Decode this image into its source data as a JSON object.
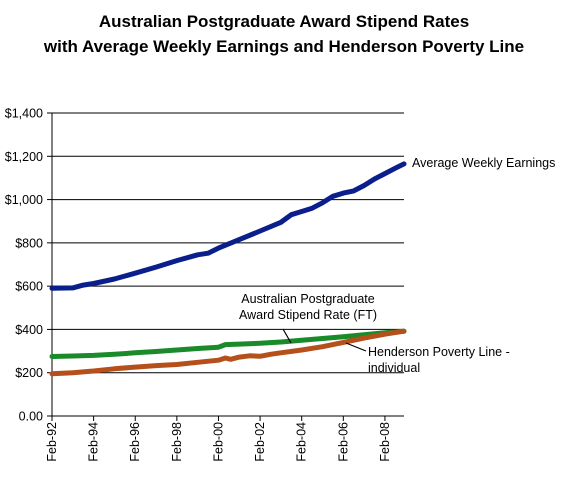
{
  "chart_data": {
    "type": "line",
    "title_lines": [
      "Australian Postgraduate Award Stipend Rates",
      "with Average Weekly Earnings and Henderson Poverty Line"
    ],
    "xlabel": "",
    "ylabel": "",
    "ylim": [
      0,
      1400
    ],
    "xlim": [
      "1992-02",
      "2009-01"
    ],
    "y_ticks": [
      0,
      200,
      400,
      600,
      800,
      1000,
      1200,
      1400
    ],
    "y_tick_labels": [
      "0.00",
      "$200",
      "$400",
      "$600",
      "$800",
      "$1,000",
      "$1,200",
      "$1,400"
    ],
    "x_ticks": [
      "1992-02",
      "1994-02",
      "1996-02",
      "1998-02",
      "2000-02",
      "2002-02",
      "2004-02",
      "2006-02",
      "2008-02"
    ],
    "x_tick_labels": [
      "Feb-92",
      "Feb-94",
      "Feb-96",
      "Feb-98",
      "Feb-00",
      "Feb-02",
      "Feb-04",
      "Feb-06",
      "Feb-08"
    ],
    "grid": "horizontal",
    "series": [
      {
        "name": "Average Weekly Earnings",
        "color": "#0A1E8C",
        "points": [
          [
            "1992-02",
            590
          ],
          [
            "1993-02",
            592
          ],
          [
            "1993-08",
            605
          ],
          [
            "1994-02",
            612
          ],
          [
            "1995-02",
            633
          ],
          [
            "1996-02",
            660
          ],
          [
            "1997-02",
            688
          ],
          [
            "1998-02",
            718
          ],
          [
            "1999-02",
            745
          ],
          [
            "1999-08",
            752
          ],
          [
            "2000-02",
            776
          ],
          [
            "2001-02",
            815
          ],
          [
            "2002-02",
            855
          ],
          [
            "2003-02",
            895
          ],
          [
            "2003-08",
            930
          ],
          [
            "2004-02",
            945
          ],
          [
            "2004-08",
            960
          ],
          [
            "2005-02",
            985
          ],
          [
            "2005-08",
            1015
          ],
          [
            "2006-02",
            1030
          ],
          [
            "2006-08",
            1040
          ],
          [
            "2007-02",
            1065
          ],
          [
            "2007-08",
            1095
          ],
          [
            "2008-02",
            1120
          ],
          [
            "2008-08",
            1145
          ],
          [
            "2009-01",
            1165
          ]
        ]
      },
      {
        "name": "Australian Postgraduate Award Stipend Rate (FT)",
        "color": "#1A8A2A",
        "points": [
          [
            "1992-02",
            275
          ],
          [
            "1993-02",
            277
          ],
          [
            "1994-02",
            280
          ],
          [
            "1995-02",
            285
          ],
          [
            "1996-02",
            292
          ],
          [
            "1997-02",
            298
          ],
          [
            "1998-02",
            305
          ],
          [
            "1999-02",
            312
          ],
          [
            "2000-02",
            318
          ],
          [
            "2000-06",
            330
          ],
          [
            "2001-02",
            332
          ],
          [
            "2002-02",
            336
          ],
          [
            "2003-02",
            342
          ],
          [
            "2004-02",
            350
          ],
          [
            "2005-02",
            358
          ],
          [
            "2006-02",
            366
          ],
          [
            "2007-02",
            375
          ],
          [
            "2008-02",
            385
          ],
          [
            "2009-01",
            392
          ]
        ]
      },
      {
        "name": "Henderson Poverty Line - individual",
        "color": "#B5501B",
        "points": [
          [
            "1992-02",
            195
          ],
          [
            "1993-02",
            200
          ],
          [
            "1994-02",
            208
          ],
          [
            "1995-02",
            218
          ],
          [
            "1996-02",
            226
          ],
          [
            "1997-02",
            233
          ],
          [
            "1998-02",
            238
          ],
          [
            "1999-02",
            248
          ],
          [
            "2000-02",
            258
          ],
          [
            "2000-06",
            268
          ],
          [
            "2000-09",
            262
          ],
          [
            "2001-02",
            272
          ],
          [
            "2001-08",
            278
          ],
          [
            "2002-02",
            276
          ],
          [
            "2002-08",
            285
          ],
          [
            "2003-02",
            292
          ],
          [
            "2004-02",
            305
          ],
          [
            "2005-02",
            320
          ],
          [
            "2006-02",
            340
          ],
          [
            "2007-02",
            360
          ],
          [
            "2008-02",
            378
          ],
          [
            "2009-01",
            392
          ]
        ]
      }
    ],
    "annotations": [
      {
        "series_index": 0,
        "lines": [
          "Average Weekly Earnings"
        ]
      },
      {
        "series_index": 1,
        "lines": [
          "Australian Postgraduate",
          "Award Stipend Rate (FT)"
        ]
      },
      {
        "series_index": 2,
        "lines": [
          "Henderson Poverty Line -",
          "individual"
        ]
      }
    ]
  }
}
